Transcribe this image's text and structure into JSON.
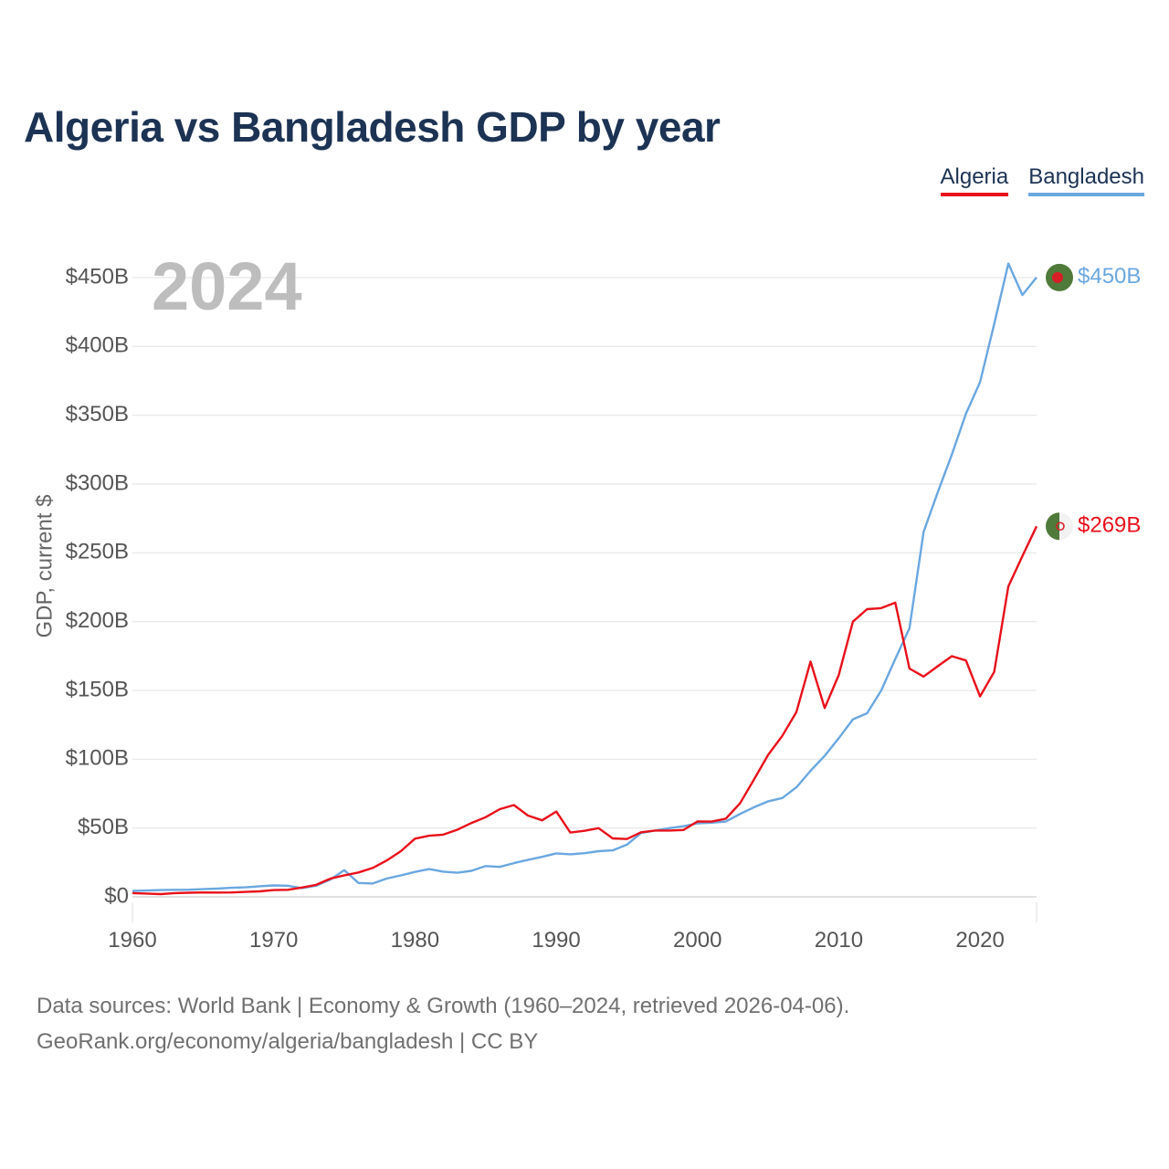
{
  "title": "Algeria vs Bangladesh GDP by year",
  "year_label": "2024",
  "legend": [
    {
      "name": "Algeria",
      "color": "#e8101a"
    },
    {
      "name": "Bangladesh",
      "color": "#6aa7e0"
    }
  ],
  "footer": {
    "line1": "Data sources: World Bank | Economy & Growth (1960–2024, retrieved 2026-04-06).",
    "line2": "GeoRank.org/economy/algeria/bangladesh | CC BY"
  },
  "chart_data": {
    "type": "line",
    "title": "Algeria vs Bangladesh GDP by year",
    "xlabel": "",
    "ylabel": "GDP, current $",
    "xlim": [
      1960,
      2024
    ],
    "ylim": [
      0,
      450
    ],
    "unit": "billion current US$",
    "grid": true,
    "legend_position": "top-right",
    "x_ticks": [
      1960,
      1970,
      1980,
      1990,
      2000,
      2010,
      2020
    ],
    "x_tick_labels": [
      "1960",
      "1970",
      "1980",
      "1990",
      "2000",
      "2010",
      "2020"
    ],
    "y_ticks": [
      0,
      50,
      100,
      150,
      200,
      250,
      300,
      350,
      400,
      450
    ],
    "y_tick_labels": [
      "$0",
      "$50B",
      "$100B",
      "$150B",
      "$200B",
      "$250B",
      "$300B",
      "$350B",
      "$400B",
      "$450B"
    ],
    "x": [
      1960,
      1961,
      1962,
      1963,
      1964,
      1965,
      1966,
      1967,
      1968,
      1969,
      1970,
      1971,
      1972,
      1973,
      1974,
      1975,
      1976,
      1977,
      1978,
      1979,
      1980,
      1981,
      1982,
      1983,
      1984,
      1985,
      1986,
      1987,
      1988,
      1989,
      1990,
      1991,
      1992,
      1993,
      1994,
      1995,
      1996,
      1997,
      1998,
      1999,
      2000,
      2001,
      2002,
      2003,
      2004,
      2005,
      2006,
      2007,
      2008,
      2009,
      2010,
      2011,
      2012,
      2013,
      2014,
      2015,
      2016,
      2017,
      2018,
      2019,
      2020,
      2021,
      2022,
      2023,
      2024
    ],
    "series": [
      {
        "name": "Algeria",
        "color": "#e8101a",
        "end_label": "$269B",
        "values": [
          2.7,
          2.4,
          2.0,
          2.7,
          3.0,
          3.2,
          3.1,
          3.2,
          3.6,
          4.0,
          4.9,
          5.1,
          6.8,
          8.7,
          13.2,
          15.6,
          17.7,
          21.0,
          26.4,
          33.2,
          42.3,
          44.4,
          45.2,
          48.8,
          53.7,
          57.9,
          63.7,
          66.7,
          59.1,
          55.6,
          62.0,
          46.7,
          48.0,
          49.9,
          42.5,
          42.0,
          46.9,
          48.2,
          48.2,
          48.6,
          54.8,
          54.7,
          56.8,
          67.9,
          85.3,
          103.2,
          117.0,
          134.3,
          171.0,
          137.2,
          161.2,
          200.0,
          209.1,
          209.8,
          213.8,
          165.9,
          160.1,
          167.6,
          174.9,
          171.8,
          145.7,
          163.5,
          225.6,
          247.6,
          269.3
        ]
      },
      {
        "name": "Bangladesh",
        "color": "#6aa7e0",
        "end_label": "$450B",
        "values": [
          4.3,
          4.6,
          4.9,
          5.1,
          5.2,
          5.6,
          6.0,
          6.6,
          6.9,
          7.7,
          8.3,
          8.1,
          6.3,
          8.1,
          12.5,
          19.4,
          10.1,
          9.7,
          13.3,
          15.6,
          18.1,
          20.2,
          18.3,
          17.5,
          18.9,
          22.4,
          21.8,
          24.5,
          26.9,
          29.1,
          31.6,
          30.9,
          31.7,
          33.2,
          33.8,
          37.9,
          46.4,
          48.2,
          49.9,
          51.3,
          53.4,
          53.9,
          54.7,
          60.2,
          65.1,
          69.4,
          71.8,
          79.6,
          91.6,
          102.5,
          115.3,
          129.0,
          133.4,
          149.9,
          172.9,
          195.1,
          265.2,
          293.8,
          321.4,
          351.2,
          374.0,
          416.3,
          460.2,
          437.4,
          450.1
        ]
      }
    ]
  }
}
